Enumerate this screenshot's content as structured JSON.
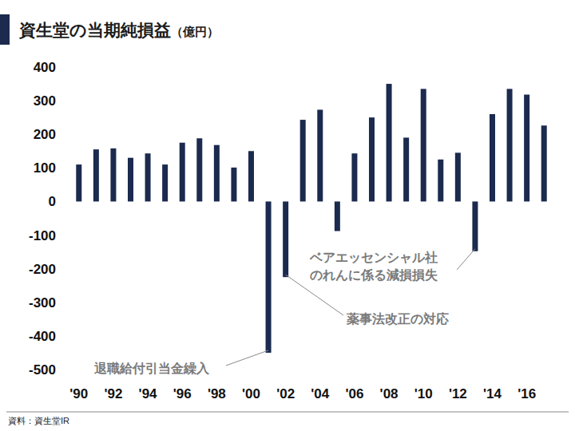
{
  "chart_data": {
    "type": "bar",
    "title": "資生堂の当期純損益",
    "subtitle": "（億円）",
    "source": "資料：資生堂IR",
    "categories": [
      "'90",
      null,
      "'92",
      null,
      "'94",
      null,
      "'96",
      null,
      "'98",
      null,
      "'00",
      null,
      "'02",
      null,
      "'04",
      null,
      "'06",
      null,
      "'08",
      null,
      "'10",
      null,
      "'12",
      null,
      "'14",
      null,
      "'16",
      null
    ],
    "values": [
      110,
      155,
      158,
      130,
      143,
      110,
      175,
      188,
      168,
      101,
      150,
      -450,
      -225,
      243,
      273,
      -88,
      143,
      250,
      350,
      190,
      335,
      125,
      145,
      -148,
      260,
      335,
      318,
      226
    ],
    "color": "#1b2a4e",
    "ylim": [
      -500,
      400
    ],
    "yticks": [
      -500,
      -400,
      -300,
      -200,
      -100,
      0,
      100,
      200,
      300,
      400
    ],
    "grid": false,
    "annotations": [
      {
        "lines": [
          "退職給付引当金繰入"
        ],
        "index": 11
      },
      {
        "lines": [
          "薬事法改正の対応"
        ],
        "index": 12
      },
      {
        "lines": [
          "ベアエッセンシャル社",
          "のれんに係る減損損失"
        ],
        "index": 23
      }
    ]
  }
}
